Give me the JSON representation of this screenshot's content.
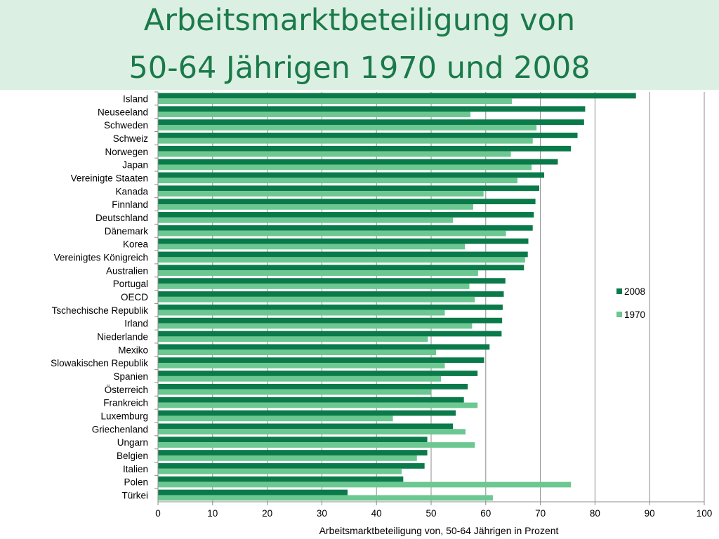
{
  "chart_data": {
    "type": "bar",
    "orientation": "horizontal",
    "title": "Arbeitsmarktbeteiligung von",
    "subtitle": "50-64 Jährigen 1970 und 2008",
    "xlabel": "Arbeitsmarktbeteiligung von, 50-64  Jährigen in Prozent",
    "ylabel": "",
    "xlim": [
      0,
      100
    ],
    "xticks": [
      0,
      10,
      20,
      30,
      40,
      50,
      60,
      70,
      80,
      90,
      100
    ],
    "grid": "vertical",
    "legend": "right",
    "categories": [
      "Island",
      "Neuseeland",
      "Schweden",
      "Schweiz",
      "Norwegen",
      "Japan",
      "Vereinigte Staaten",
      "Kanada",
      "Finnland",
      "Deutschland",
      "Dänemark",
      "Korea",
      "Vereinigtes Königreich",
      "Australien",
      "Portugal",
      "OECD",
      "Tschechische Republik",
      "Irland",
      "Niederlande",
      "Mexiko",
      "Slowakischen Republik",
      "Spanien",
      "Österreich",
      "Frankreich",
      "Luxemburg",
      "Griechenland",
      "Ungarn",
      "Belgien",
      "Italien",
      "Polen",
      "Türkei"
    ],
    "series": [
      {
        "name": "2008",
        "color": "#0b7a4a",
        "values": [
          87.5,
          78.2,
          78.0,
          76.8,
          75.6,
          73.2,
          70.7,
          69.8,
          69.1,
          68.8,
          68.6,
          67.8,
          67.7,
          67.0,
          63.6,
          63.3,
          63.1,
          63.0,
          62.9,
          60.7,
          59.7,
          58.5,
          56.7,
          56.0,
          54.5,
          54.0,
          49.3,
          49.3,
          48.8,
          44.9,
          34.7
        ]
      },
      {
        "name": "1970",
        "color": "#6cc791",
        "values": [
          64.8,
          57.2,
          69.3,
          68.6,
          64.6,
          68.4,
          65.8,
          59.6,
          57.7,
          54.0,
          63.7,
          56.2,
          67.2,
          58.6,
          57.0,
          58.0,
          52.5,
          57.5,
          49.4,
          50.9,
          52.5,
          51.8,
          50.0,
          58.5,
          43.0,
          56.3,
          58.0,
          47.4,
          44.6,
          75.6,
          61.3
        ]
      }
    ]
  }
}
